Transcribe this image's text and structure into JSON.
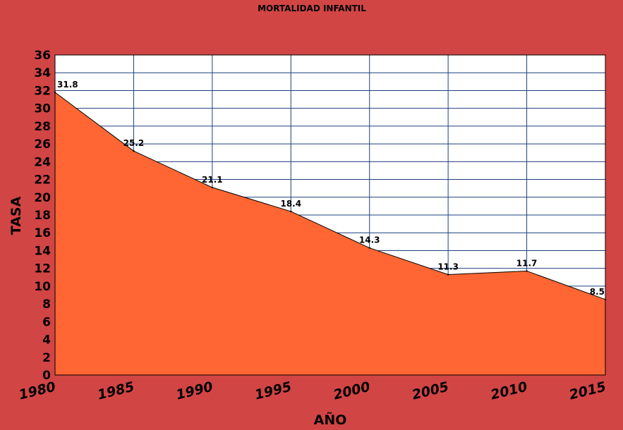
{
  "chart_data": {
    "type": "area",
    "title": "MORTALIDAD INFANTIL",
    "xlabel": "AÑO",
    "ylabel": "TASA",
    "x": [
      "1980",
      "1985",
      "1990",
      "1995",
      "2000",
      "2005",
      "2010",
      "2015"
    ],
    "values": [
      31.8,
      25.2,
      21.1,
      18.4,
      14.3,
      11.3,
      11.7,
      8.5
    ],
    "data_labels": [
      "31.8",
      "25.2",
      "21.1",
      "18.4",
      "14.3",
      "11.3",
      "11.7",
      "8.5"
    ],
    "ylim": [
      0,
      36
    ],
    "yticks": [
      "0",
      "2",
      "4",
      "6",
      "8",
      "10",
      "12",
      "14",
      "16",
      "18",
      "20",
      "22",
      "24",
      "26",
      "28",
      "30",
      "32",
      "34",
      "36"
    ],
    "grid": true,
    "colors": {
      "background": "#d24545",
      "plot_area": "#ffffff",
      "area_fill": "#ff6633",
      "grid": "#1f3f7a",
      "line": "#000000"
    }
  }
}
